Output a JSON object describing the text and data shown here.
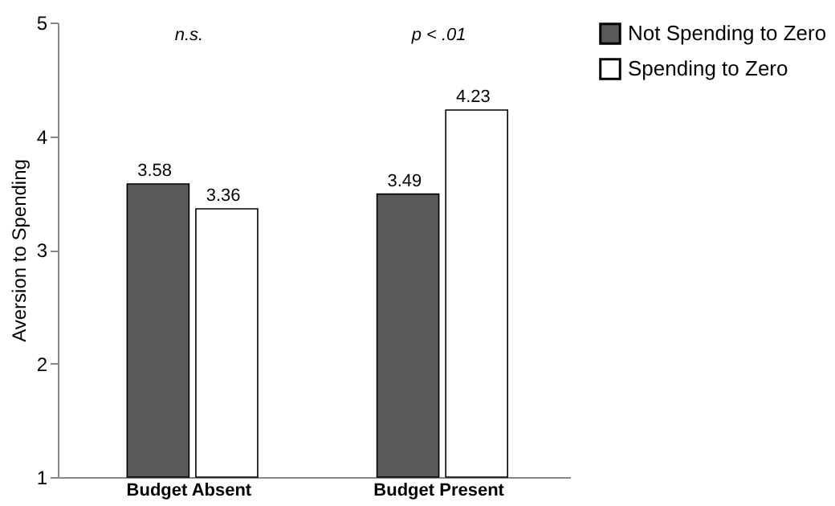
{
  "chart_data": {
    "type": "bar",
    "ylabel": "Aversion to Spending",
    "categories": [
      "Budget Absent",
      "Budget Present"
    ],
    "series": [
      {
        "name": "Not Spending to Zero",
        "color": "#595959",
        "values": [
          3.58,
          3.49
        ]
      },
      {
        "name": "Spending to Zero",
        "color": "#ffffff",
        "values": [
          3.36,
          4.23
        ]
      }
    ],
    "ylim": [
      1,
      5
    ],
    "yticks": [
      1,
      2,
      3,
      4,
      5
    ],
    "grid": false,
    "legend": "right",
    "data_labels": true,
    "annotations": [
      "n.s.",
      "p < .01"
    ]
  }
}
